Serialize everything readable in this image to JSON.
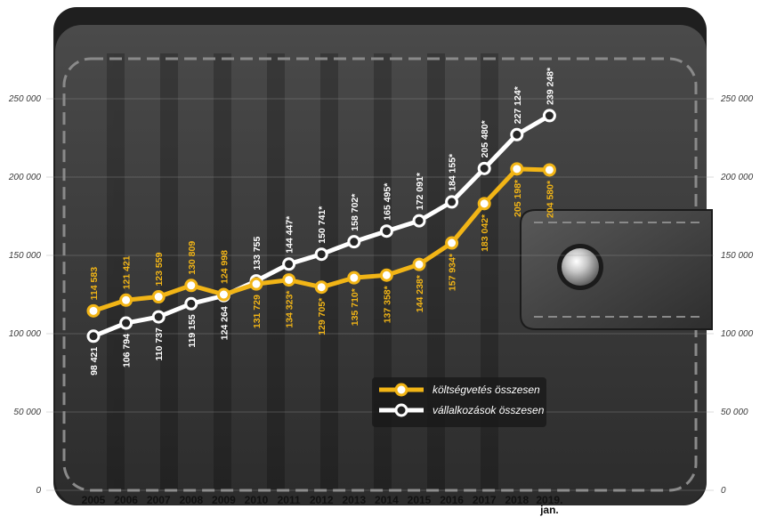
{
  "chart_data": {
    "type": "line",
    "categories": [
      "2005",
      "2006",
      "2007",
      "2008",
      "2009",
      "2010",
      "2011",
      "2012",
      "2013",
      "2014",
      "2015",
      "2016",
      "2017",
      "2018",
      "2019.|jan."
    ],
    "series": [
      {
        "name": "költségvetés összesen",
        "color": "#f2b516",
        "values": [
          114583,
          121421,
          123559,
          130809,
          124998,
          131729,
          134323,
          129705,
          135710,
          137358,
          144238,
          157934,
          183042,
          205198,
          204580
        ],
        "labels": [
          "114 583",
          "121 421",
          "123 559",
          "130 809",
          "124 998",
          "131 729",
          "134 323*",
          "129 705*",
          "135 710*",
          "137 358*",
          "144 238*",
          "157 934*",
          "183 042*",
          "205 198*",
          "204 580*"
        ]
      },
      {
        "name": "vállalkozások összesen",
        "color": "#ffffff",
        "values": [
          98421,
          106794,
          110737,
          119155,
          124264,
          133755,
          144447,
          150741,
          158702,
          165495,
          172091,
          184155,
          205480,
          227124,
          239248
        ],
        "labels": [
          "98 421",
          "106 794",
          "110 737",
          "119 155",
          "124 264",
          "133 755",
          "144 447*",
          "150 741*",
          "158 702*",
          "165 495*",
          "172 091*",
          "184 155*",
          "205 480*",
          "227 124*",
          "239 248*"
        ]
      }
    ],
    "yticks": [
      0,
      50000,
      100000,
      150000,
      200000,
      250000
    ],
    "ytick_labels": [
      "0",
      "50 000",
      "100 000",
      "150 000",
      "200 000",
      "250 000"
    ],
    "ylim": [
      0,
      250000
    ],
    "grid": true,
    "legend": "center-right"
  }
}
